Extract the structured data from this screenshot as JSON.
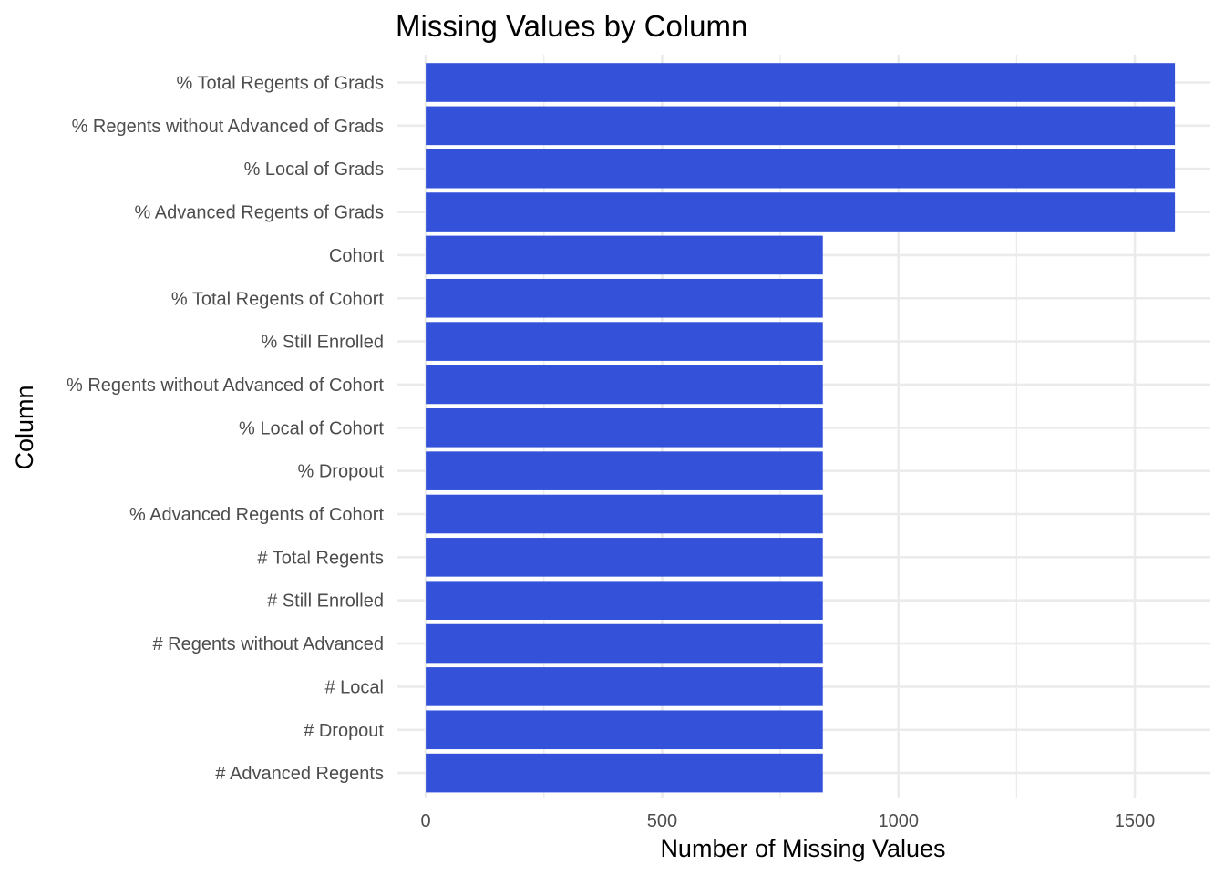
{
  "chart_data": {
    "type": "bar",
    "orientation": "horizontal",
    "title": "Missing Values by Column",
    "xlabel": "Number of Missing Values",
    "ylabel": "Column",
    "xlim": [
      -60,
      1660
    ],
    "xticks": [
      0,
      500,
      1000,
      1500
    ],
    "xtick_labels": [
      "0",
      "500",
      "1000",
      "1500"
    ],
    "minor_xticks": [
      250,
      750,
      1250
    ],
    "grid": true,
    "bar_color": "#3352d9",
    "categories": [
      "% Total Regents of Grads",
      "% Regents without Advanced of Grads",
      "% Local of Grads",
      "% Advanced Regents of Grads",
      "Cohort",
      "% Total Regents of Cohort",
      "% Still Enrolled",
      "% Regents without Advanced of Cohort",
      "% Local of Cohort",
      "% Dropout",
      "% Advanced Regents of Cohort",
      "# Total Regents",
      "# Still Enrolled",
      "# Regents without Advanced",
      "# Local",
      "# Dropout",
      "# Advanced Regents"
    ],
    "values": [
      1585,
      1585,
      1585,
      1585,
      840,
      840,
      840,
      840,
      840,
      840,
      840,
      840,
      840,
      840,
      840,
      840,
      840
    ]
  }
}
